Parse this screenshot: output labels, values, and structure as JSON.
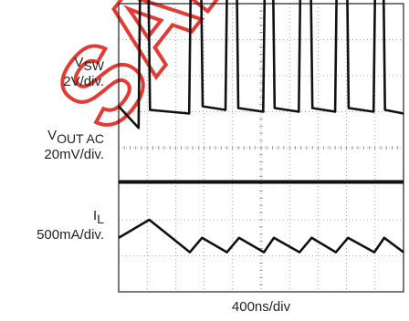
{
  "watermark": {
    "text": "SAMPLE",
    "color": "#e0261f"
  },
  "channels": [
    {
      "name": "V",
      "sub": "SW",
      "scale": "2V/div."
    },
    {
      "name": "V",
      "sub": "OUT AC",
      "scale": "20mV/div."
    },
    {
      "name": "I",
      "sub": "L",
      "scale": "500mA/div."
    }
  ],
  "time_scale": "400ns/div",
  "chart_data": {
    "type": "line",
    "title": "",
    "xlabel": "400ns/div",
    "ylabel": "",
    "grid": true,
    "grid_divisions": {
      "x": 10,
      "y": 8
    },
    "xlim": [
      0,
      4000
    ],
    "x_unit": "ns",
    "series": [
      {
        "name": "VSW",
        "unit": "V",
        "x": [
          0,
          280,
          300,
          420,
          440,
          990,
          1010,
          1160,
          1180,
          1500,
          1520,
          1660,
          1680,
          2030,
          2050,
          2170,
          2190,
          2530,
          2550,
          2700,
          2720,
          3040,
          3060,
          3210,
          3230,
          3580,
          3600,
          3720,
          3740,
          4000
        ],
        "values": [
          3.4,
          2.2,
          9.8,
          9.6,
          3.2,
          3.0,
          9.7,
          9.5,
          3.4,
          3.2,
          9.8,
          9.6,
          3.3,
          3.1,
          9.8,
          9.6,
          3.3,
          3.1,
          9.7,
          9.5,
          3.3,
          3.1,
          9.8,
          9.6,
          3.3,
          3.1,
          9.8,
          9.6,
          3.2,
          3.0
        ]
      },
      {
        "name": "VOUT AC",
        "unit": "mV",
        "x": [
          0,
          4000
        ],
        "values": [
          0,
          0
        ]
      },
      {
        "name": "IL",
        "unit": "mA",
        "x": [
          0,
          430,
          1000,
          1170,
          1520,
          1690,
          2040,
          2180,
          2540,
          2710,
          3050,
          3220,
          3590,
          3730,
          4000
        ],
        "values": [
          0,
          250,
          -200,
          0,
          -200,
          0,
          -200,
          0,
          -200,
          0,
          -200,
          0,
          -200,
          0,
          -200
        ]
      }
    ]
  }
}
